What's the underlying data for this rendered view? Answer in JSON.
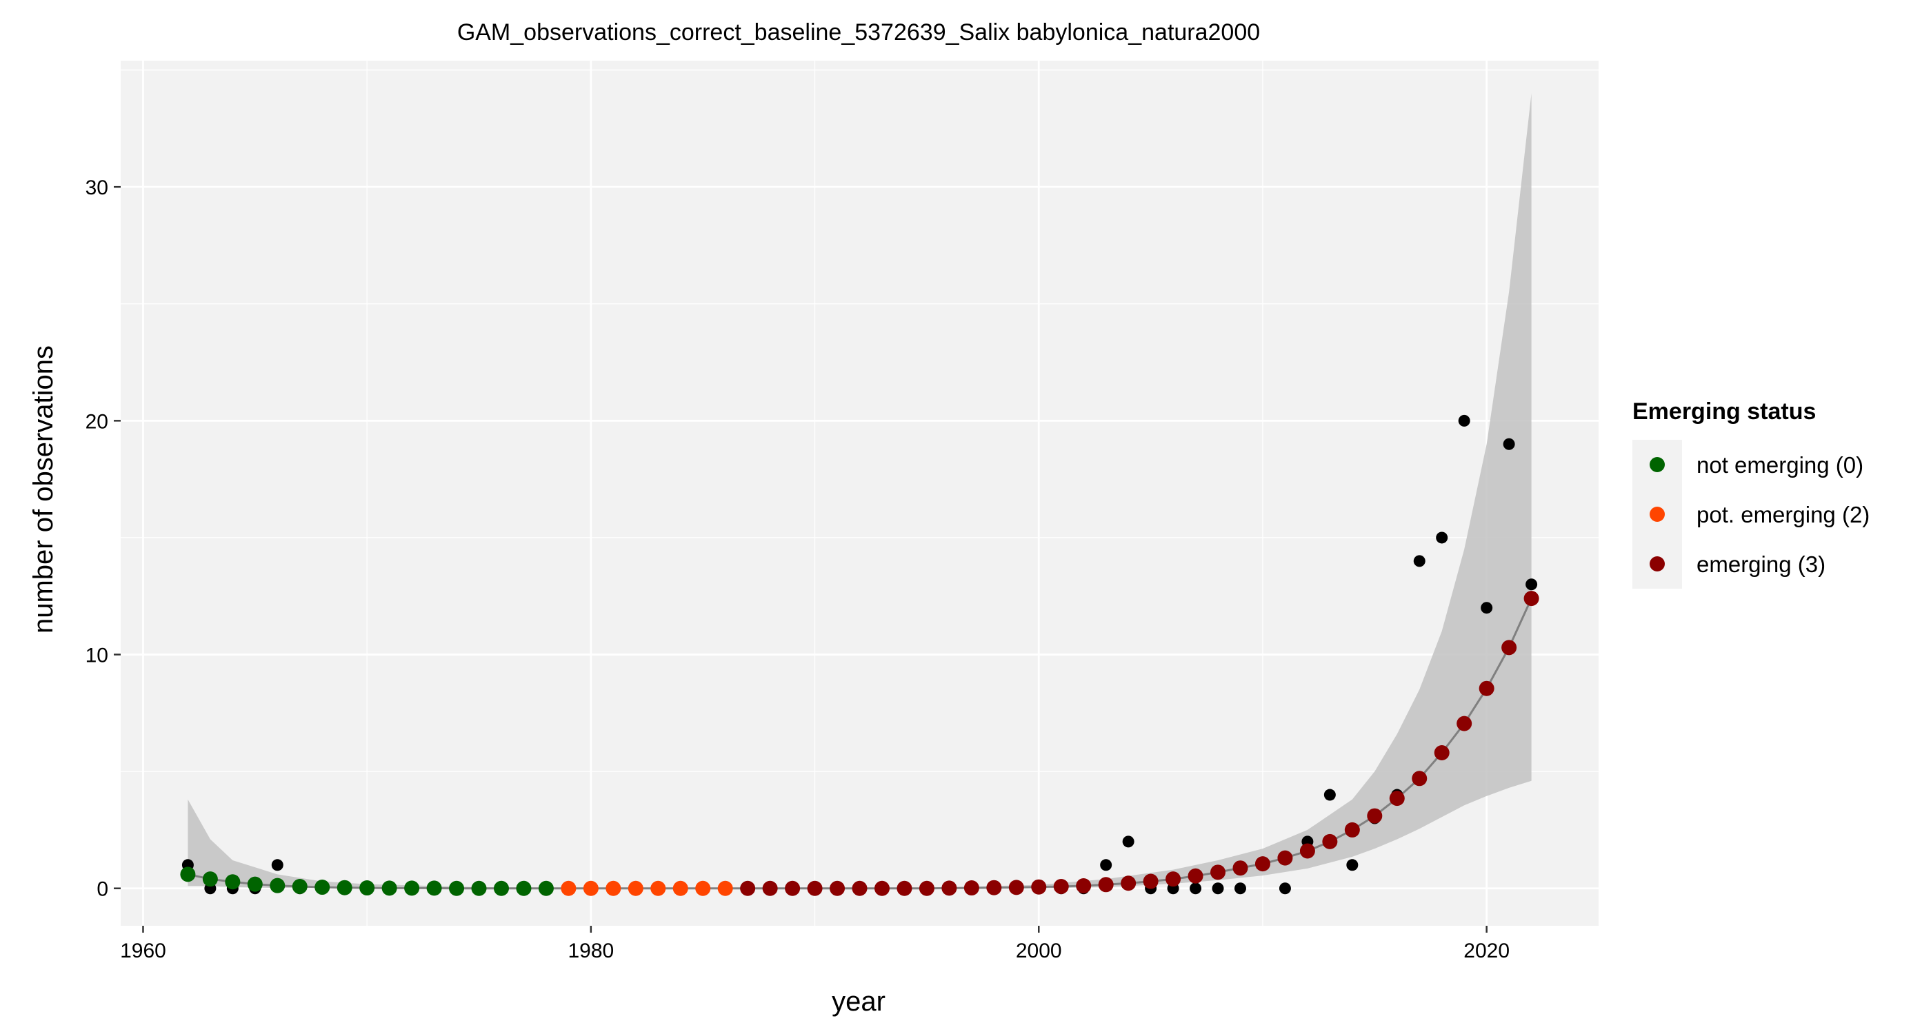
{
  "chart_data": {
    "type": "scatter",
    "title": "GAM_observations_correct_baseline_5372639_Salix babylonica_natura2000",
    "xlabel": "year",
    "ylabel": "number of observations",
    "xlim": [
      1959,
      2025
    ],
    "ylim": [
      -1.6,
      35.4
    ],
    "x_ticks": [
      1960,
      1980,
      2000,
      2020
    ],
    "y_ticks": [
      0,
      10,
      20,
      30
    ],
    "grid": true,
    "legend_position": "right",
    "legend_title": "Emerging status",
    "colors": {
      "panel_background": "#F2F2F2",
      "grid": "#FFFFFF",
      "ribbon": "#BEBEBE",
      "fit_line": "#808080",
      "observed": "#000000"
    },
    "status_categories": [
      {
        "code": 0,
        "label": "not emerging (0)",
        "color": "#006400"
      },
      {
        "code": 2,
        "label": "pot. emerging (2)",
        "color": "#FF4500"
      },
      {
        "code": 3,
        "label": "emerging (3)",
        "color": "#8B0000"
      }
    ],
    "observed": {
      "x": [
        1962,
        1963,
        1964,
        1965,
        1966,
        1967,
        1968,
        1969,
        1970,
        1971,
        1972,
        1973,
        1974,
        1975,
        1976,
        1977,
        1978,
        1979,
        1980,
        1981,
        1982,
        1983,
        1984,
        1985,
        1986,
        1987,
        1988,
        1989,
        1990,
        1991,
        1992,
        1993,
        1994,
        1995,
        1996,
        1997,
        1998,
        1999,
        2000,
        2001,
        2002,
        2003,
        2004,
        2005,
        2006,
        2007,
        2008,
        2009,
        2010,
        2011,
        2012,
        2013,
        2014,
        2015,
        2016,
        2017,
        2018,
        2019,
        2020,
        2021,
        2022
      ],
      "y": [
        1,
        0,
        0,
        0,
        1,
        0,
        0,
        0,
        0,
        0,
        0,
        0,
        0,
        0,
        0,
        0,
        0,
        0,
        0,
        0,
        0,
        0,
        0,
        0,
        0,
        0,
        0,
        0,
        0,
        0,
        0,
        0,
        0,
        0,
        0,
        0,
        0,
        0,
        0,
        0,
        0,
        1,
        2,
        0,
        0,
        0,
        0,
        0,
        1,
        0,
        2,
        4,
        1,
        3,
        4,
        14,
        15,
        20,
        12,
        19,
        13
      ]
    },
    "fitted": {
      "x": [
        1962,
        1963,
        1964,
        1965,
        1966,
        1967,
        1968,
        1969,
        1970,
        1971,
        1972,
        1973,
        1974,
        1975,
        1976,
        1977,
        1978,
        1979,
        1980,
        1981,
        1982,
        1983,
        1984,
        1985,
        1986,
        1987,
        1988,
        1989,
        1990,
        1991,
        1992,
        1993,
        1994,
        1995,
        1996,
        1997,
        1998,
        1999,
        2000,
        2001,
        2002,
        2003,
        2004,
        2005,
        2006,
        2007,
        2008,
        2009,
        2010,
        2011,
        2012,
        2013,
        2014,
        2015,
        2016,
        2017,
        2018,
        2019,
        2020,
        2021,
        2022
      ],
      "y": [
        0.6,
        0.4,
        0.28,
        0.18,
        0.12,
        0.08,
        0.05,
        0.03,
        0.02,
        0.01,
        0.01,
        0.01,
        0,
        0,
        0,
        0,
        0,
        0,
        0,
        0,
        0,
        0,
        0,
        0,
        0,
        0,
        0,
        0,
        0,
        0,
        0,
        0,
        0,
        0,
        0.01,
        0.02,
        0.03,
        0.04,
        0.06,
        0.08,
        0.11,
        0.16,
        0.22,
        0.3,
        0.4,
        0.53,
        0.69,
        0.87,
        1.05,
        1.3,
        1.6,
        2.0,
        2.5,
        3.1,
        3.85,
        4.7,
        5.8,
        7.05,
        8.55,
        10.3,
        12.4
      ],
      "status": [
        0,
        0,
        0,
        0,
        0,
        0,
        0,
        0,
        0,
        0,
        0,
        0,
        0,
        0,
        0,
        0,
        0,
        2,
        2,
        2,
        2,
        2,
        2,
        2,
        2,
        3,
        3,
        3,
        3,
        3,
        3,
        3,
        3,
        3,
        3,
        3,
        3,
        3,
        3,
        3,
        3,
        3,
        3,
        3,
        3,
        3,
        3,
        3,
        3,
        3,
        3,
        3,
        3,
        3,
        3,
        3,
        3,
        3,
        3,
        3,
        3
      ]
    },
    "confidence_band": {
      "x": [
        1962,
        1963,
        1964,
        1966,
        1968,
        1970,
        1975,
        1980,
        1985,
        1990,
        1995,
        2000,
        2003,
        2006,
        2008,
        2010,
        2012,
        2014,
        2015,
        2016,
        2017,
        2018,
        2019,
        2020,
        2021,
        2022
      ],
      "lower": [
        0.1,
        0.1,
        0.05,
        0.02,
        0.01,
        0,
        0,
        0,
        0,
        0,
        0,
        0,
        0.05,
        0.2,
        0.35,
        0.55,
        0.85,
        1.35,
        1.7,
        2.1,
        2.55,
        3.05,
        3.55,
        3.95,
        4.3,
        4.6
      ],
      "upper": [
        3.8,
        2.1,
        1.2,
        0.6,
        0.3,
        0.18,
        0.05,
        0.02,
        0.02,
        0.02,
        0.03,
        0.15,
        0.4,
        0.8,
        1.2,
        1.7,
        2.5,
        3.8,
        5.0,
        6.6,
        8.5,
        11.0,
        14.5,
        19.0,
        25.5,
        34.0
      ]
    }
  }
}
